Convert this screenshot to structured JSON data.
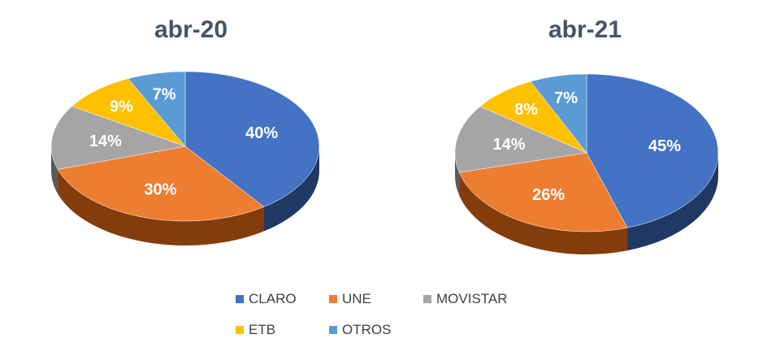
{
  "chart_data": [
    {
      "type": "pie",
      "title": "abr-20",
      "categories": [
        "CLARO",
        "UNE",
        "MOVISTAR",
        "ETB",
        "OTROS"
      ],
      "values": [
        40,
        30,
        14,
        9,
        7
      ],
      "labels": [
        "40%",
        "30%",
        "14%",
        "9%",
        "7%"
      ]
    },
    {
      "type": "pie",
      "title": "abr-21",
      "categories": [
        "CLARO",
        "UNE",
        "MOVISTAR",
        "ETB",
        "OTROS"
      ],
      "values": [
        45,
        26,
        14,
        8,
        7
      ],
      "labels": [
        "45%",
        "26%",
        "14%",
        "8%",
        "7%"
      ]
    }
  ],
  "legend": {
    "placement": "bottom",
    "items": [
      {
        "label": "CLARO",
        "color": "#4472c4"
      },
      {
        "label": "UNE",
        "color": "#ed7d31"
      },
      {
        "label": "MOVISTAR",
        "color": "#a5a5a5"
      },
      {
        "label": "ETB",
        "color": "#ffc000"
      },
      {
        "label": "OTROS",
        "color": "#5b9bd5"
      }
    ]
  },
  "colors": {
    "top": [
      "#4472c4",
      "#ed7d31",
      "#a5a5a5",
      "#ffc000",
      "#5b9bd5"
    ],
    "side": [
      "#1f3864",
      "#843c0c",
      "#595959",
      "#7f6000",
      "#1f4e79"
    ],
    "title": "#44546a"
  }
}
